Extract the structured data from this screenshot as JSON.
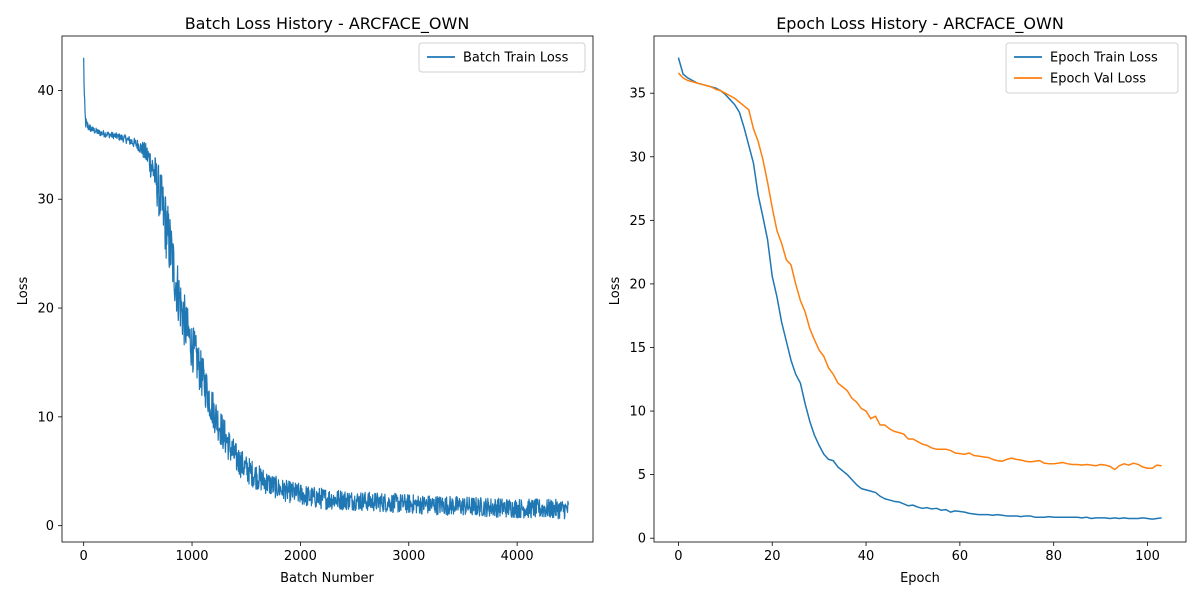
{
  "chart_data": [
    {
      "type": "line",
      "title": "Batch Loss History - ARCFACE_OWN",
      "xlabel": "Batch Number",
      "ylabel": "Loss",
      "xlim": [
        -200,
        4700
      ],
      "ylim": [
        -1.5,
        45
      ],
      "xticks": [
        0,
        1000,
        2000,
        3000,
        4000
      ],
      "yticks": [
        0,
        10,
        20,
        30,
        40
      ],
      "legend_position": "top-right",
      "series": [
        {
          "name": "Batch Train Loss",
          "color": "#1f77b4",
          "noisy": true,
          "x": [
            0,
            5,
            10,
            15,
            20,
            30,
            50,
            80,
            100,
            150,
            200,
            300,
            400,
            500,
            550,
            600,
            650,
            700,
            750,
            800,
            850,
            900,
            950,
            1000,
            1050,
            1100,
            1150,
            1200,
            1250,
            1300,
            1350,
            1400,
            1500,
            1600,
            1700,
            1800,
            1900,
            2000,
            2100,
            2200,
            2500,
            3000,
            3500,
            4000,
            4478
          ],
          "y": [
            43,
            39.8,
            38,
            37.3,
            37,
            36.8,
            36.6,
            36.4,
            36.3,
            36.1,
            36,
            35.8,
            35.5,
            35,
            34.5,
            33.8,
            32.5,
            30.5,
            28,
            25.5,
            22.5,
            20,
            18,
            16.5,
            15,
            13.5,
            12,
            10.5,
            9.3,
            8.2,
            7.2,
            6.3,
            5.2,
            4.5,
            3.9,
            3.4,
            3.1,
            2.9,
            2.6,
            2.5,
            2.3,
            2.0,
            1.8,
            1.6,
            1.5
          ],
          "spread": [
            0,
            1,
            1,
            0.8,
            0.6,
            0.5,
            0.4,
            0.3,
            0.3,
            0.3,
            0.3,
            0.3,
            0.4,
            0.5,
            0.8,
            1.2,
            1.8,
            2.5,
            3.0,
            3.0,
            2.8,
            2.6,
            2.4,
            2.2,
            2.1,
            2.0,
            1.9,
            1.8,
            1.7,
            1.6,
            1.5,
            1.4,
            1.3,
            1.2,
            1.1,
            1.0,
            1.0,
            1.0,
            1.0,
            1.0,
            0.9,
            0.9,
            0.9,
            0.9,
            0.9
          ]
        }
      ]
    },
    {
      "type": "line",
      "title": "Epoch Loss History - ARCFACE_OWN",
      "xlabel": "Epoch",
      "ylabel": "Loss",
      "xlim": [
        -5.2,
        108.2
      ],
      "ylim": [
        -0.3,
        39.5
      ],
      "xticks": [
        0,
        20,
        40,
        60,
        80,
        100
      ],
      "yticks": [
        0,
        5,
        10,
        15,
        20,
        25,
        30,
        35
      ],
      "legend_position": "top-right",
      "series": [
        {
          "name": "Epoch Train Loss",
          "color": "#1f77b4",
          "x": [
            0,
            1,
            2,
            3,
            4,
            5,
            6,
            7,
            8,
            9,
            10,
            11,
            12,
            13,
            14,
            15,
            16,
            17,
            18,
            19,
            20,
            21,
            22,
            23,
            24,
            25,
            26,
            27,
            28,
            29,
            30,
            31,
            32,
            33,
            34,
            35,
            36,
            37,
            38,
            39,
            40,
            41,
            42,
            43,
            44,
            45,
            46,
            47,
            48,
            49,
            50,
            51,
            52,
            53,
            54,
            55,
            56,
            57,
            58,
            59,
            60,
            61,
            62,
            63,
            64,
            65,
            66,
            67,
            68,
            69,
            70,
            71,
            72,
            73,
            74,
            75,
            76,
            77,
            78,
            79,
            80,
            81,
            82,
            83,
            84,
            85,
            86,
            87,
            88,
            89,
            90,
            91,
            92,
            93,
            94,
            95,
            96,
            97,
            98,
            99,
            100,
            101,
            102,
            103
          ],
          "y": [
            37.8,
            36.5,
            36.2,
            36.0,
            35.8,
            35.7,
            35.6,
            35.5,
            35.4,
            35.2,
            34.9,
            34.5,
            34.1,
            33.5,
            32.3,
            30.9,
            29.5,
            27.0,
            25.3,
            23.5,
            20.6,
            19.0,
            17.0,
            15.5,
            14.0,
            12.9,
            12.2,
            10.6,
            9.2,
            8.1,
            7.3,
            6.6,
            6.2,
            6.1,
            5.6,
            5.3,
            5.0,
            4.6,
            4.2,
            3.9,
            3.8,
            3.7,
            3.6,
            3.3,
            3.1,
            3.0,
            2.9,
            2.85,
            2.7,
            2.55,
            2.6,
            2.45,
            2.35,
            2.4,
            2.3,
            2.35,
            2.2,
            2.25,
            2.05,
            2.15,
            2.1,
            2.05,
            1.95,
            1.9,
            1.85,
            1.85,
            1.85,
            1.8,
            1.85,
            1.8,
            1.75,
            1.75,
            1.75,
            1.7,
            1.75,
            1.75,
            1.65,
            1.65,
            1.65,
            1.7,
            1.65,
            1.65,
            1.65,
            1.65,
            1.65,
            1.65,
            1.6,
            1.65,
            1.55,
            1.6,
            1.6,
            1.6,
            1.55,
            1.6,
            1.55,
            1.6,
            1.55,
            1.55,
            1.55,
            1.6,
            1.55,
            1.5,
            1.55,
            1.6
          ]
        },
        {
          "name": "Epoch Val Loss",
          "color": "#ff7f0e",
          "x": [
            0,
            1,
            2,
            3,
            4,
            5,
            6,
            7,
            8,
            9,
            10,
            11,
            12,
            13,
            14,
            15,
            16,
            17,
            18,
            19,
            20,
            21,
            22,
            23,
            24,
            25,
            26,
            27,
            28,
            29,
            30,
            31,
            32,
            33,
            34,
            35,
            36,
            37,
            38,
            39,
            40,
            41,
            42,
            43,
            44,
            45,
            46,
            47,
            48,
            49,
            50,
            51,
            52,
            53,
            54,
            55,
            56,
            57,
            58,
            59,
            60,
            61,
            62,
            63,
            64,
            65,
            66,
            67,
            68,
            69,
            70,
            71,
            72,
            73,
            74,
            75,
            76,
            77,
            78,
            79,
            80,
            81,
            82,
            83,
            84,
            85,
            86,
            87,
            88,
            89,
            90,
            91,
            92,
            93,
            94,
            95,
            96,
            97,
            98,
            99,
            100,
            101,
            102,
            103
          ],
          "y": [
            36.6,
            36.2,
            36.0,
            35.9,
            35.8,
            35.7,
            35.6,
            35.5,
            35.3,
            35.2,
            35.0,
            34.8,
            34.6,
            34.3,
            34.0,
            33.7,
            32.2,
            31.2,
            29.8,
            28.0,
            26.0,
            24.2,
            23.2,
            21.9,
            21.5,
            20.0,
            18.7,
            17.8,
            16.5,
            15.6,
            14.8,
            14.3,
            13.4,
            12.9,
            12.2,
            11.9,
            11.6,
            11.0,
            10.7,
            10.2,
            10.0,
            9.4,
            9.6,
            8.9,
            8.9,
            8.6,
            8.4,
            8.3,
            8.2,
            7.8,
            7.8,
            7.6,
            7.4,
            7.3,
            7.1,
            7.0,
            7.0,
            7.0,
            6.9,
            6.7,
            6.65,
            6.6,
            6.7,
            6.5,
            6.45,
            6.4,
            6.35,
            6.2,
            6.1,
            6.05,
            6.2,
            6.3,
            6.2,
            6.15,
            6.05,
            6.0,
            6.05,
            6.1,
            5.9,
            5.85,
            5.85,
            5.9,
            5.95,
            5.85,
            5.8,
            5.8,
            5.75,
            5.8,
            5.75,
            5.7,
            5.8,
            5.75,
            5.65,
            5.4,
            5.7,
            5.85,
            5.75,
            5.9,
            5.8,
            5.6,
            5.5,
            5.5,
            5.75,
            5.7
          ]
        }
      ]
    }
  ]
}
